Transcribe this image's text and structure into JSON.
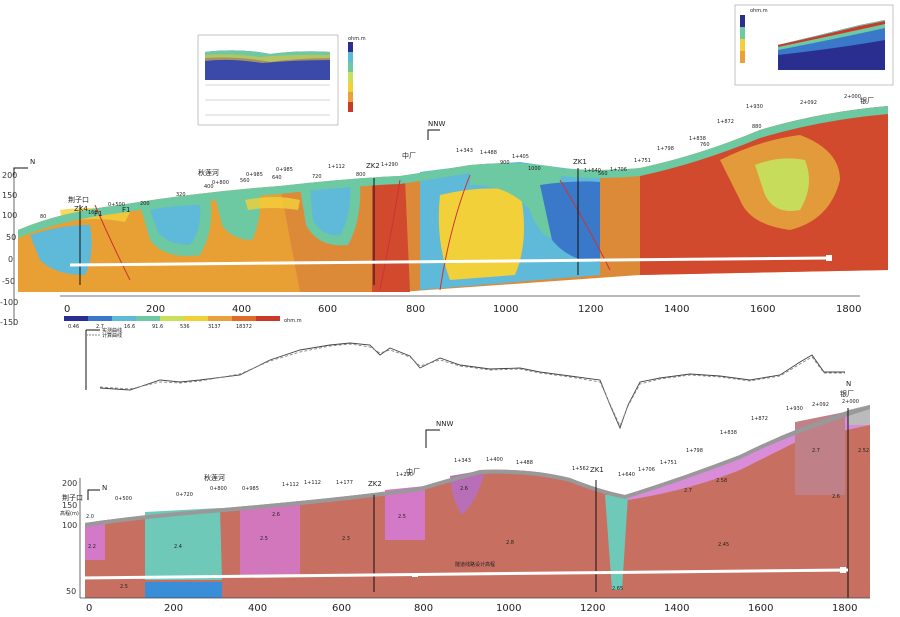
{
  "top_section": {
    "north_label": "N",
    "nnw_label": "NNW",
    "y_ticks": [
      "200",
      "150",
      "100",
      "50",
      "0",
      "-50",
      "-100",
      "-150"
    ],
    "x_ticks": [
      "0",
      "200",
      "400",
      "600",
      "800",
      "1000",
      "1200",
      "1400",
      "1600",
      "1800"
    ],
    "place_labels": [
      "荆子口",
      "秋莲河",
      "中厂",
      "银厂",
      "ZK4",
      "ZK2",
      "ZK1",
      "F1",
      "F1"
    ],
    "station_labels": [
      "0+500",
      "0+800",
      "0+985",
      "1+112",
      "1+290",
      "1+343",
      "1+488",
      "1+405",
      "1+640",
      "1+706",
      "1+751",
      "1+798",
      "1+838",
      "1+872",
      "1+930",
      "2+000",
      "2+092"
    ],
    "distance_labels": [
      "80",
      "160",
      "200",
      "320",
      "400",
      "560",
      "640",
      "720",
      "800",
      "900",
      "1000",
      "560",
      "760",
      "880"
    ],
    "ohm_unit": "ohm.m",
    "legend_values": [
      "0.46",
      "2.7",
      "16.6",
      "91.6",
      "536",
      "3137",
      "18372"
    ],
    "legend_colors": [
      "#2a2f8f",
      "#3a79c9",
      "#5fb9d8",
      "#6cc9a2",
      "#c9e05a",
      "#f2d03a",
      "#e9a23a",
      "#e06a2a",
      "#c93a2a"
    ]
  },
  "profile_legend": {
    "measured": "实测曲线",
    "calculated": "计算曲线"
  },
  "bottom_section": {
    "north_label": "N",
    "nnw_label": "NNW",
    "y_ticks": [
      "200",
      "150",
      "100",
      "50"
    ],
    "x_ticks": [
      "0",
      "200",
      "400",
      "600",
      "800",
      "1000",
      "1200",
      "1400",
      "1600",
      "1800"
    ],
    "place_labels": [
      "荆子口",
      "秋莲河",
      "中厂",
      "银厂",
      "ZK2",
      "ZK1"
    ],
    "station_labels": [
      "0+500",
      "0+720",
      "0+800",
      "0+985",
      "1+112",
      "1+177",
      "1+290",
      "1+343",
      "1+400",
      "1+488",
      "1+562",
      "1+640",
      "1+706",
      "1+751",
      "1+798",
      "1+838",
      "1+872",
      "1+930",
      "2+000",
      "2+092"
    ],
    "unit_labels": [
      "2.0",
      "2.2",
      "2.5",
      "2.4",
      "2.6",
      "2.5",
      "2.3",
      "2.5",
      "2.6",
      "2.8",
      "2.65",
      "2.7",
      "2.58",
      "2.45",
      "2.7",
      "2.6",
      "2.52"
    ],
    "y_axis_label": "高程(m)",
    "bottom_note": "隧道线路设计高程"
  },
  "inset_left": {
    "title": "ohm.m",
    "legend_values": [
      "15000",
      "10000",
      "5000",
      "1000",
      "500",
      "100",
      "50",
      "10"
    ]
  },
  "inset_right": {
    "title": "ohm.m"
  }
}
